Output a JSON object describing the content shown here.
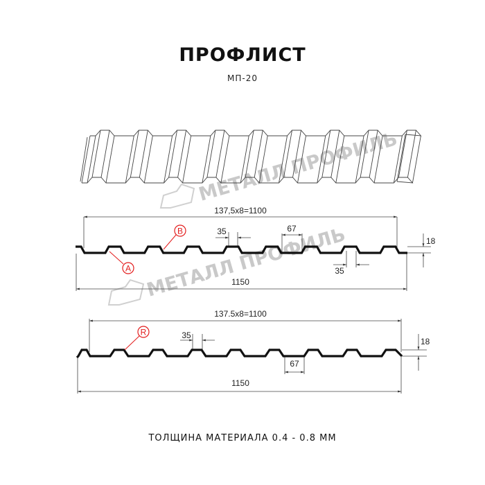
{
  "header": {
    "title": "ПРОФЛИСТ",
    "subtitle": "МП-20"
  },
  "watermark": {
    "text": "МЕТАЛЛ ПРОФИЛЬ"
  },
  "profile_top": {
    "pitch_label": "137,5x8=1100",
    "width_label": "1150",
    "top_flat_label": "35",
    "bottom_flat_label": "35",
    "valley_label": "67",
    "height_label": "18",
    "marker_a": "A",
    "marker_b": "B"
  },
  "profile_bottom": {
    "pitch_label": "137.5x8=1100",
    "width_label": "1150",
    "top_flat_label": "35",
    "valley_label": "67",
    "height_label": "18",
    "marker_r": "R"
  },
  "footer": {
    "thickness": "ТОЛЩИНА МАТЕРИАЛА 0.4 - 0.8 ММ"
  },
  "colors": {
    "marker": "#e31b1b",
    "profile": "#111111",
    "watermark": "#c9c9c9"
  }
}
